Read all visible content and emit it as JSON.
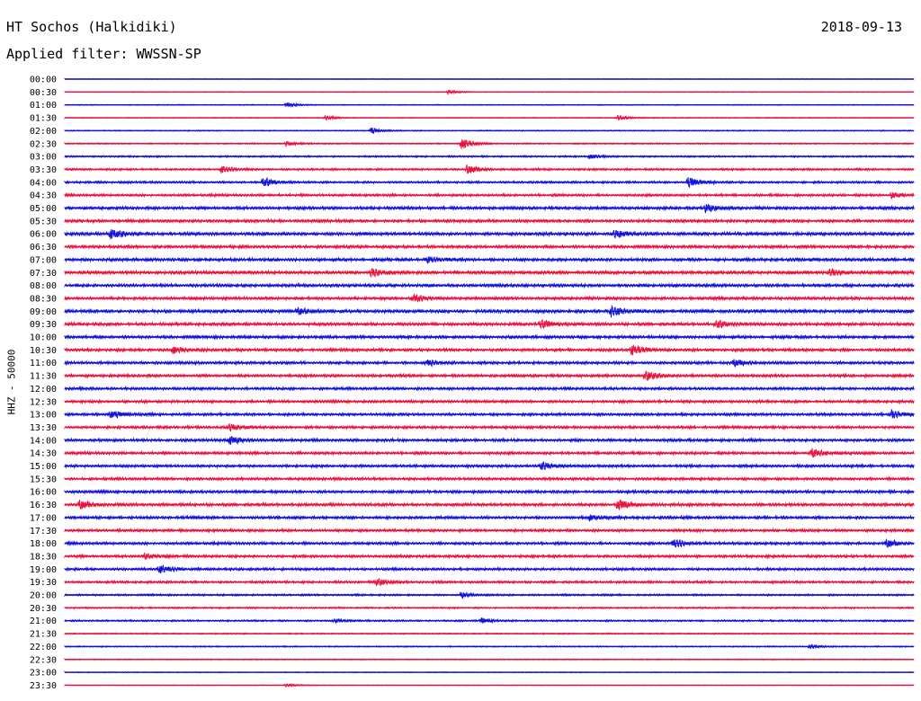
{
  "header": {
    "station": "HT Sochos (Halkidiki)",
    "date": "2018-09-13",
    "filter": "Applied filter: WWSSN-SP"
  },
  "axis": {
    "channel_label": "HHZ - 50000"
  },
  "colors": {
    "trace_a": "#1010d8",
    "trace_b": "#e8103c"
  },
  "chart_data": {
    "type": "line",
    "title": "HT Sochos (Halkidiki)",
    "subtitle": "Applied filter: WWSSN-SP",
    "ylabel": "HHZ - 50000",
    "row_labels": [
      "00:00",
      "00:30",
      "01:00",
      "01:30",
      "02:00",
      "02:30",
      "03:00",
      "03:30",
      "04:00",
      "04:30",
      "05:00",
      "05:30",
      "06:00",
      "06:30",
      "07:00",
      "07:30",
      "08:00",
      "08:30",
      "09:00",
      "09:30",
      "10:00",
      "10:30",
      "11:00",
      "11:30",
      "12:00",
      "12:30",
      "13:00",
      "13:30",
      "14:00",
      "14:30",
      "15:00",
      "15:30",
      "16:00",
      "16:30",
      "17:00",
      "17:30",
      "18:00",
      "18:30",
      "19:00",
      "19:30",
      "20:00",
      "20:30",
      "21:00",
      "21:30",
      "22:00",
      "22:30",
      "23:00",
      "23:30"
    ],
    "row_colors": [
      "trace_a",
      "trace_b",
      "trace_a",
      "trace_b",
      "trace_a",
      "trace_b",
      "trace_a",
      "trace_b",
      "trace_a",
      "trace_b",
      "trace_a",
      "trace_b",
      "trace_a",
      "trace_b",
      "trace_a",
      "trace_b",
      "trace_a",
      "trace_b",
      "trace_a",
      "trace_b",
      "trace_a",
      "trace_b",
      "trace_a",
      "trace_b",
      "trace_a",
      "trace_b",
      "trace_a",
      "trace_b",
      "trace_a",
      "trace_b",
      "trace_a",
      "trace_b",
      "trace_a",
      "trace_b",
      "trace_a",
      "trace_b",
      "trace_a",
      "trace_b",
      "trace_a",
      "trace_b",
      "trace_a",
      "trace_b",
      "trace_a",
      "trace_b",
      "trace_a",
      "trace_b",
      "trace_a",
      "trace_b"
    ],
    "row_noise_level": [
      0.3,
      0.4,
      0.5,
      0.5,
      0.6,
      0.8,
      1.0,
      1.2,
      1.3,
      1.5,
      1.8,
      1.8,
      2.0,
      1.8,
      1.9,
      2.0,
      1.9,
      1.8,
      2.0,
      1.9,
      1.8,
      1.7,
      1.7,
      1.7,
      1.6,
      1.6,
      1.6,
      1.6,
      1.7,
      1.7,
      1.6,
      1.6,
      1.7,
      1.8,
      1.7,
      1.6,
      1.6,
      1.6,
      1.5,
      1.4,
      1.1,
      1.0,
      1.0,
      0.8,
      0.7,
      0.6,
      0.5,
      0.4
    ],
    "bursts": [
      {
        "row": 1,
        "minute": 13.5,
        "amplitude": 2.5
      },
      {
        "row": 2,
        "minute": 7.8,
        "amplitude": 3.0
      },
      {
        "row": 3,
        "minute": 19.5,
        "amplitude": 3.5
      },
      {
        "row": 3,
        "minute": 9.2,
        "amplitude": 2.5
      },
      {
        "row": 4,
        "minute": 10.8,
        "amplitude": 3.5
      },
      {
        "row": 5,
        "minute": 14.0,
        "amplitude": 6.5
      },
      {
        "row": 5,
        "minute": 7.8,
        "amplitude": 3.0
      },
      {
        "row": 6,
        "minute": 18.5,
        "amplitude": 3.0
      },
      {
        "row": 7,
        "minute": 14.2,
        "amplitude": 5.5
      },
      {
        "row": 7,
        "minute": 5.5,
        "amplitude": 4.0
      },
      {
        "row": 8,
        "minute": 22.0,
        "amplitude": 6.5
      },
      {
        "row": 8,
        "minute": 7.0,
        "amplitude": 5.5
      },
      {
        "row": 9,
        "minute": 29.2,
        "amplitude": 3.5
      },
      {
        "row": 10,
        "minute": 22.6,
        "amplitude": 5.0
      },
      {
        "row": 12,
        "minute": 1.6,
        "amplitude": 5.5
      },
      {
        "row": 12,
        "minute": 19.4,
        "amplitude": 4.5
      },
      {
        "row": 14,
        "minute": 12.8,
        "amplitude": 3.5
      },
      {
        "row": 15,
        "minute": 10.8,
        "amplitude": 5.0
      },
      {
        "row": 15,
        "minute": 27.0,
        "amplitude": 4.0
      },
      {
        "row": 17,
        "minute": 12.3,
        "amplitude": 4.5
      },
      {
        "row": 18,
        "minute": 19.3,
        "amplitude": 6.5
      },
      {
        "row": 18,
        "minute": 8.2,
        "amplitude": 4.0
      },
      {
        "row": 19,
        "minute": 16.8,
        "amplitude": 5.0
      },
      {
        "row": 19,
        "minute": 23.0,
        "amplitude": 4.5
      },
      {
        "row": 21,
        "minute": 3.8,
        "amplitude": 4.0
      },
      {
        "row": 21,
        "minute": 20.0,
        "amplitude": 6.0
      },
      {
        "row": 22,
        "minute": 12.8,
        "amplitude": 3.5
      },
      {
        "row": 22,
        "minute": 23.6,
        "amplitude": 4.5
      },
      {
        "row": 23,
        "minute": 20.5,
        "amplitude": 5.5
      },
      {
        "row": 26,
        "minute": 1.6,
        "amplitude": 5.0
      },
      {
        "row": 26,
        "minute": 29.2,
        "amplitude": 4.5
      },
      {
        "row": 27,
        "minute": 5.8,
        "amplitude": 4.0
      },
      {
        "row": 28,
        "minute": 5.8,
        "amplitude": 5.0
      },
      {
        "row": 29,
        "minute": 26.4,
        "amplitude": 5.5
      },
      {
        "row": 30,
        "minute": 16.8,
        "amplitude": 4.5
      },
      {
        "row": 33,
        "minute": 19.5,
        "amplitude": 7.0
      },
      {
        "row": 33,
        "minute": 0.5,
        "amplitude": 5.0
      },
      {
        "row": 34,
        "minute": 18.5,
        "amplitude": 4.0
      },
      {
        "row": 36,
        "minute": 21.5,
        "amplitude": 5.0
      },
      {
        "row": 36,
        "minute": 29.0,
        "amplitude": 4.5
      },
      {
        "row": 37,
        "minute": 2.8,
        "amplitude": 3.5
      },
      {
        "row": 38,
        "minute": 3.3,
        "amplitude": 5.0
      },
      {
        "row": 39,
        "minute": 11.0,
        "amplitude": 4.5
      },
      {
        "row": 40,
        "minute": 14.0,
        "amplitude": 3.0
      },
      {
        "row": 42,
        "minute": 14.7,
        "amplitude": 3.5
      },
      {
        "row": 42,
        "minute": 9.5,
        "amplitude": 2.5
      },
      {
        "row": 44,
        "minute": 26.3,
        "amplitude": 2.5
      },
      {
        "row": 47,
        "minute": 7.8,
        "amplitude": 2.0
      }
    ]
  }
}
